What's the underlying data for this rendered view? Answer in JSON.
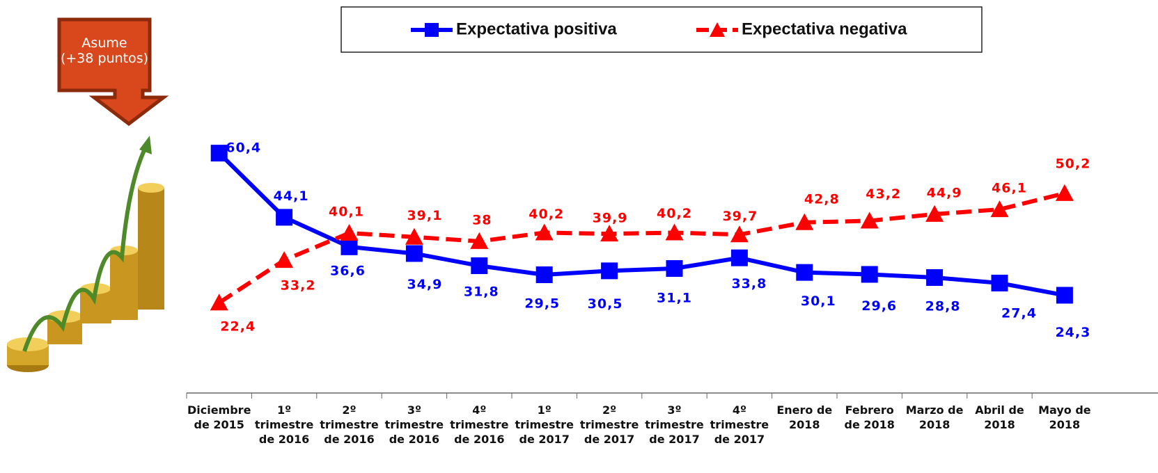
{
  "chart_data": {
    "type": "line",
    "annotation": "Asume\n(+38 puntos)",
    "categories": [
      "Diciembre\nde 2015",
      "1º\ntrimestre\nde 2016",
      "2º\ntrimestre\nde 2016",
      "3º\ntrimestre\nde 2016",
      "4º\ntrimestre\nde 2016",
      "1º\ntrimestre\nde 2017",
      "2º\ntrimestre\nde 2017",
      "3º\ntrimestre\nde 2017",
      "4º\ntrimestre\nde 2017",
      "Enero de\n2018",
      "Febrero\nde 2018",
      "Marzo de\n2018",
      "Abril de\n2018",
      "Mayo de\n2018"
    ],
    "series": [
      {
        "name": "Expectativa positiva",
        "color": "#0000ff",
        "dash": false,
        "marker": "square",
        "values": [
          60.4,
          44.1,
          36.6,
          34.9,
          31.8,
          29.5,
          30.5,
          31.1,
          33.8,
          30.1,
          29.6,
          28.8,
          27.4,
          24.3
        ],
        "value_labels": [
          "60,4",
          "44,1",
          "36,6",
          "34,9",
          "31,8",
          "29,5",
          "30,5",
          "31,1",
          "33,8",
          "30,1",
          "29,6",
          "28,8",
          "27,4",
          "24,3"
        ]
      },
      {
        "name": "Expectativa negativa",
        "color": "#ff0000",
        "dash": true,
        "marker": "triangle",
        "values": [
          22.4,
          33.2,
          40.1,
          39.1,
          38,
          40.2,
          39.9,
          40.2,
          39.7,
          42.8,
          43.2,
          44.9,
          46.1,
          50.2
        ],
        "value_labels": [
          "22,4",
          "33,2",
          "40,1",
          "39,1",
          "38",
          "40,2",
          "39,9",
          "40,2",
          "39,7",
          "42,8",
          "43,2",
          "44,9",
          "46,1",
          "50,2"
        ]
      }
    ],
    "legend": "top"
  }
}
